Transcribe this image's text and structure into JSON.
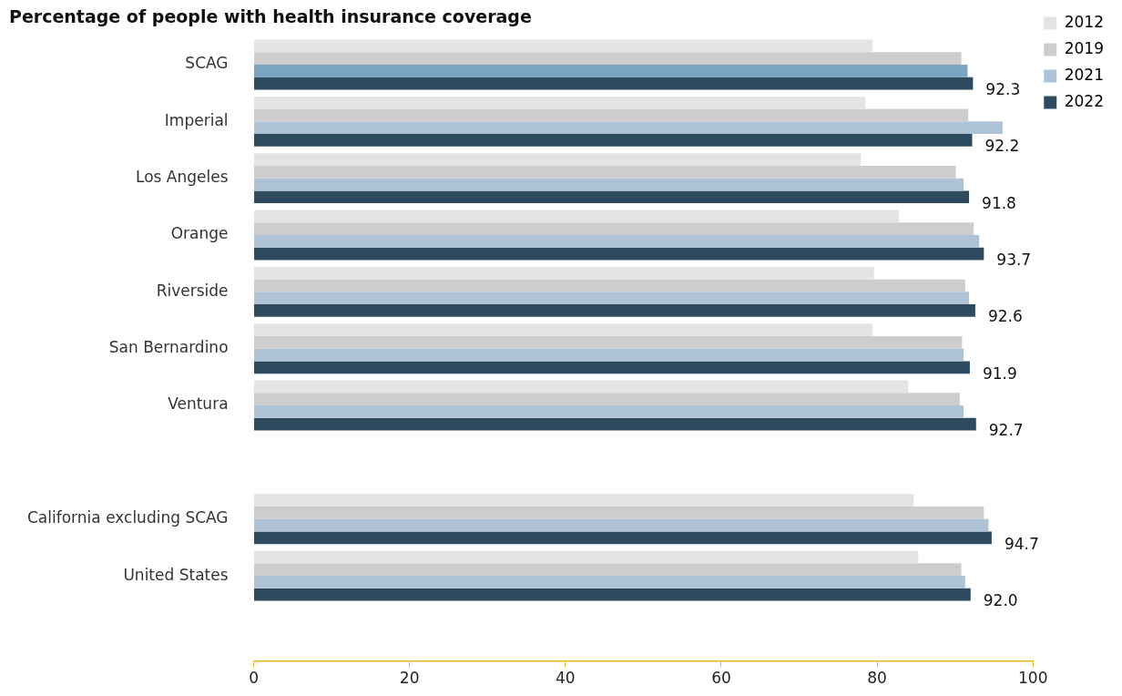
{
  "chart_data": {
    "type": "bar",
    "orientation": "horizontal",
    "title": "Percentage of people with health insurance coverage",
    "categories": [
      "SCAG",
      "Imperial",
      "Los Angeles",
      "Orange",
      "Riverside",
      "San Bernardino",
      "Ventura",
      null,
      "California excluding SCAG",
      "United States",
      null
    ],
    "series": [
      {
        "name": "2012",
        "color": "#e4e4e4",
        "values": [
          79.4,
          78.5,
          77.9,
          82.8,
          79.6,
          79.4,
          84.0,
          null,
          84.7,
          85.3,
          null
        ]
      },
      {
        "name": "2019",
        "color": "#cdcdcd",
        "values": [
          90.8,
          91.7,
          90.1,
          92.4,
          91.3,
          90.9,
          90.6,
          null,
          93.7,
          90.8,
          null
        ]
      },
      {
        "name": "2021",
        "color": "#aec4d6",
        "colors": [
          "#7ba3c2",
          "#aec4d6",
          "#aec4d6",
          "#aec4d6",
          "#aec4d6",
          "#aec4d6",
          "#aec4d6",
          "#aec4d6",
          "#aec4d6",
          "#aec4d6",
          "#aec4d6"
        ],
        "values": [
          91.6,
          96.1,
          91.1,
          93.1,
          91.8,
          91.1,
          91.1,
          null,
          94.3,
          91.3,
          null
        ]
      },
      {
        "name": "2022",
        "color": "#2e4a5f",
        "values": [
          92.3,
          92.2,
          91.8,
          93.7,
          92.6,
          91.9,
          92.7,
          null,
          94.7,
          92.0,
          null
        ],
        "value_labels": [
          "92.3",
          "92.2",
          "91.8",
          "93.7",
          "92.6",
          "91.9",
          "92.7",
          null,
          "94.7",
          "92.0",
          null
        ]
      }
    ],
    "xlim": [
      0,
      100
    ],
    "xticks": [
      0,
      20,
      40,
      60,
      80,
      100
    ],
    "grid": false,
    "legend": "top right"
  }
}
